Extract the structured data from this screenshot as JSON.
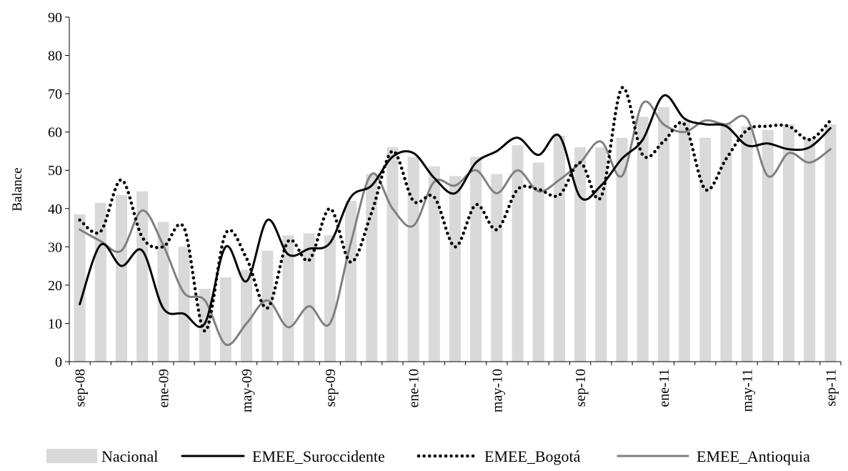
{
  "chart_data": {
    "type": "bar",
    "title": "",
    "xlabel": "",
    "ylabel": "Balance",
    "ylim": [
      0,
      90
    ],
    "yticks": [
      0,
      10,
      20,
      30,
      40,
      50,
      60,
      70,
      80,
      90
    ],
    "grid": false,
    "legend_position": "bottom",
    "categories": [
      "sep-08",
      "oct-08",
      "nov-08",
      "dic-08",
      "ene-09",
      "feb-09",
      "mar-09",
      "abr-09",
      "may-09",
      "jun-09",
      "jul-09",
      "ago-09",
      "sep-09",
      "oct-09",
      "nov-09",
      "dic-09",
      "ene-10",
      "feb-10",
      "mar-10",
      "abr-10",
      "may-10",
      "jun-10",
      "jul-10",
      "ago-10",
      "sep-10",
      "oct-10",
      "nov-10",
      "dic-10",
      "ene-11",
      "feb-11",
      "mar-11",
      "abr-11",
      "may-11",
      "jun-11",
      "jul-11",
      "ago-11",
      "sep-11"
    ],
    "tick_labels": [
      "sep-08",
      "ene-09",
      "may-09",
      "sep-09",
      "ene-10",
      "may-10",
      "sep-10",
      "ene-11",
      "may-11",
      "sep-11"
    ],
    "tick_categories": [
      "sep-08",
      "ene-09",
      "may-09",
      "sep-09",
      "ene-10",
      "may-10",
      "sep-10",
      "ene-11",
      "may-11",
      "sep-11"
    ],
    "series": [
      {
        "name": "Nacional",
        "type": "bar",
        "color": "#d9d9d9",
        "values": [
          38.5,
          41.5,
          43.5,
          44.5,
          36.5,
          30,
          19,
          22,
          24,
          29,
          33,
          33.5,
          33,
          42,
          49,
          56,
          53.5,
          51,
          48.5,
          53.5,
          49,
          56.5,
          52,
          59,
          56,
          56,
          58.5,
          64,
          66.5,
          63,
          58.5,
          62,
          61.5,
          60.5,
          62,
          58.5,
          62
        ]
      },
      {
        "name": "EMEE_Suroccidente",
        "type": "line",
        "color": "#000000",
        "style": "solid",
        "values": [
          15,
          30.5,
          25,
          29,
          14,
          12.5,
          10,
          30,
          21,
          37,
          28,
          29.5,
          31,
          43,
          46,
          53.5,
          54.5,
          48,
          44,
          52,
          55,
          58.5,
          54,
          59,
          43,
          46,
          53,
          58,
          69.5,
          63.5,
          62,
          61.5,
          56.5,
          57,
          55.5,
          56,
          61
        ]
      },
      {
        "name": "EMEE_Bogotá",
        "type": "line",
        "color": "#000000",
        "style": "dotted",
        "values": [
          37,
          34,
          47.5,
          32.5,
          30,
          35,
          8,
          33.5,
          27,
          14,
          31.5,
          26.5,
          40,
          26,
          39,
          55,
          42,
          43,
          30,
          41,
          34.5,
          45,
          45,
          43.5,
          52,
          43,
          71.5,
          54,
          57.5,
          62,
          45,
          53,
          60.5,
          61.5,
          61.5,
          58,
          63
        ]
      },
      {
        "name": "EMEE_Antioquia",
        "type": "line",
        "color": "#808080",
        "style": "solid",
        "values": [
          34.5,
          31.5,
          29,
          39.5,
          30.5,
          18,
          16,
          4.5,
          10,
          16,
          9,
          14.5,
          10,
          31,
          49,
          40,
          35.5,
          47,
          46,
          50,
          44,
          50,
          44.5,
          47.5,
          52,
          57.5,
          48.5,
          67.5,
          62,
          60,
          63,
          62,
          63.5,
          48.5,
          54.5,
          52,
          55.5
        ]
      }
    ]
  }
}
